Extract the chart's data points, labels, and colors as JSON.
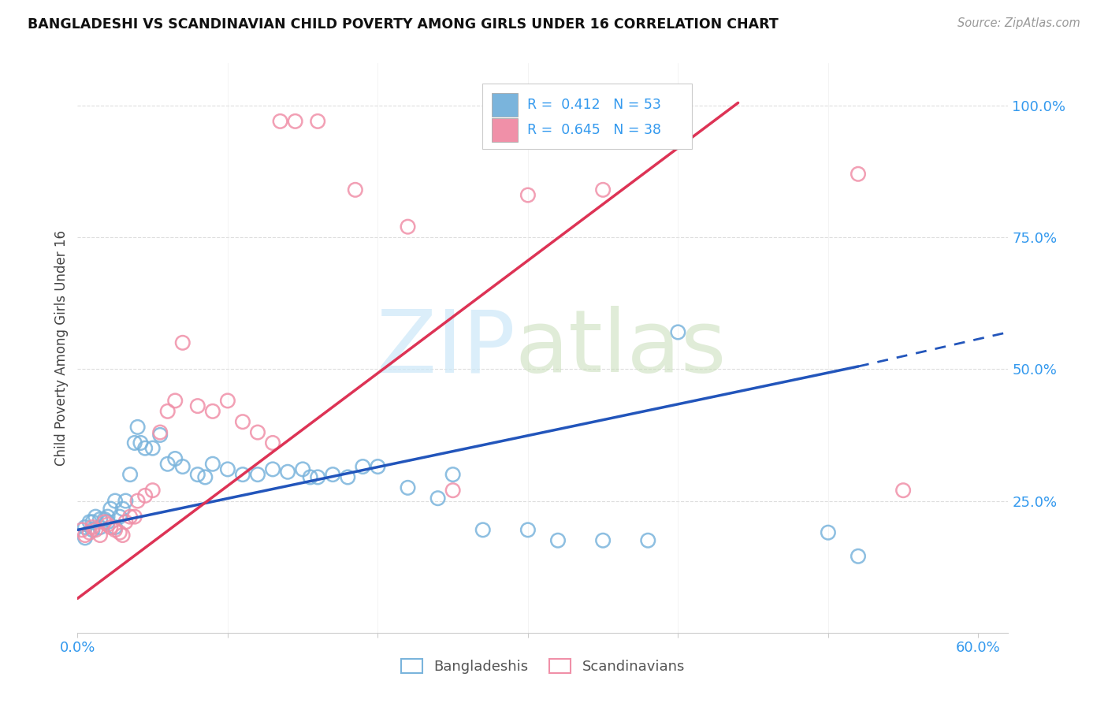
{
  "title": "BANGLADESHI VS SCANDINAVIAN CHILD POVERTY AMONG GIRLS UNDER 16 CORRELATION CHART",
  "source": "Source: ZipAtlas.com",
  "ylabel": "Child Poverty Among Girls Under 16",
  "bangladeshi_color": "#7ab4dc",
  "scandinavian_color": "#f090a8",
  "bangladeshi_line_color": "#2255bb",
  "scandinavian_line_color": "#dd3355",
  "legend_bg": "#ffffff",
  "legend_edge": "#cccccc",
  "grid_color": "#dddddd",
  "bangladeshi_x": [
    0.005,
    0.005,
    0.008,
    0.01,
    0.01,
    0.012,
    0.015,
    0.015,
    0.018,
    0.02,
    0.02,
    0.022,
    0.025,
    0.025,
    0.028,
    0.03,
    0.032,
    0.035,
    0.038,
    0.04,
    0.042,
    0.045,
    0.05,
    0.055,
    0.06,
    0.065,
    0.07,
    0.08,
    0.085,
    0.09,
    0.1,
    0.11,
    0.12,
    0.13,
    0.14,
    0.15,
    0.155,
    0.16,
    0.17,
    0.18,
    0.19,
    0.2,
    0.22,
    0.24,
    0.25,
    0.27,
    0.3,
    0.32,
    0.35,
    0.38,
    0.4,
    0.5,
    0.52
  ],
  "bangladeshi_y": [
    0.2,
    0.18,
    0.21,
    0.195,
    0.21,
    0.22,
    0.2,
    0.215,
    0.215,
    0.22,
    0.21,
    0.235,
    0.2,
    0.25,
    0.22,
    0.235,
    0.25,
    0.3,
    0.36,
    0.39,
    0.36,
    0.35,
    0.35,
    0.375,
    0.32,
    0.33,
    0.315,
    0.3,
    0.295,
    0.32,
    0.31,
    0.3,
    0.3,
    0.31,
    0.305,
    0.31,
    0.295,
    0.295,
    0.3,
    0.295,
    0.315,
    0.315,
    0.275,
    0.255,
    0.3,
    0.195,
    0.195,
    0.175,
    0.175,
    0.175,
    0.57,
    0.19,
    0.145
  ],
  "scandinavian_x": [
    0.003,
    0.005,
    0.008,
    0.01,
    0.012,
    0.015,
    0.018,
    0.02,
    0.022,
    0.025,
    0.028,
    0.03,
    0.032,
    0.035,
    0.038,
    0.04,
    0.045,
    0.05,
    0.055,
    0.06,
    0.065,
    0.07,
    0.08,
    0.09,
    0.1,
    0.11,
    0.12,
    0.13,
    0.135,
    0.145,
    0.16,
    0.185,
    0.22,
    0.25,
    0.3,
    0.35,
    0.52,
    0.55
  ],
  "scandinavian_y": [
    0.195,
    0.185,
    0.19,
    0.2,
    0.195,
    0.185,
    0.21,
    0.205,
    0.2,
    0.195,
    0.19,
    0.185,
    0.21,
    0.22,
    0.22,
    0.25,
    0.26,
    0.27,
    0.38,
    0.42,
    0.44,
    0.55,
    0.43,
    0.42,
    0.44,
    0.4,
    0.38,
    0.36,
    0.97,
    0.97,
    0.97,
    0.84,
    0.77,
    0.27,
    0.83,
    0.84,
    0.87,
    0.27
  ],
  "blue_line_x0": 0.0,
  "blue_line_y0": 0.195,
  "blue_line_x1": 0.52,
  "blue_line_y1": 0.505,
  "blue_line_dashed_x1": 0.62,
  "blue_line_dashed_y1": 0.57,
  "pink_line_x0": 0.0,
  "pink_line_y0": 0.065,
  "pink_line_x1": 0.44,
  "pink_line_y1": 1.005,
  "xmin": 0.0,
  "xmax": 0.62,
  "ymin": 0.0,
  "ymax": 1.08
}
